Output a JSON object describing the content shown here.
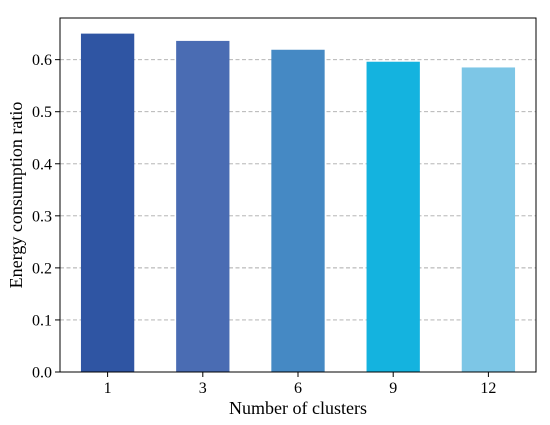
{
  "chart_data": {
    "type": "bar",
    "categories": [
      "1",
      "3",
      "6",
      "9",
      "12"
    ],
    "values": [
      0.65,
      0.636,
      0.619,
      0.596,
      0.585
    ],
    "colors": [
      "#2f55a3",
      "#4a6cb3",
      "#4589c4",
      "#14b3df",
      "#7dc6e6"
    ],
    "xlabel": "Number of clusters",
    "ylabel": "Energy consumption ratio",
    "ylim": [
      0,
      0.68
    ],
    "yticks": [
      0.0,
      0.1,
      0.2,
      0.3,
      0.4,
      0.5,
      0.6
    ],
    "ytick_labels": [
      "0.0",
      "0.1",
      "0.2",
      "0.3",
      "0.4",
      "0.5",
      "0.6"
    ],
    "grid": "horizontal dashed",
    "legend": "none"
  }
}
